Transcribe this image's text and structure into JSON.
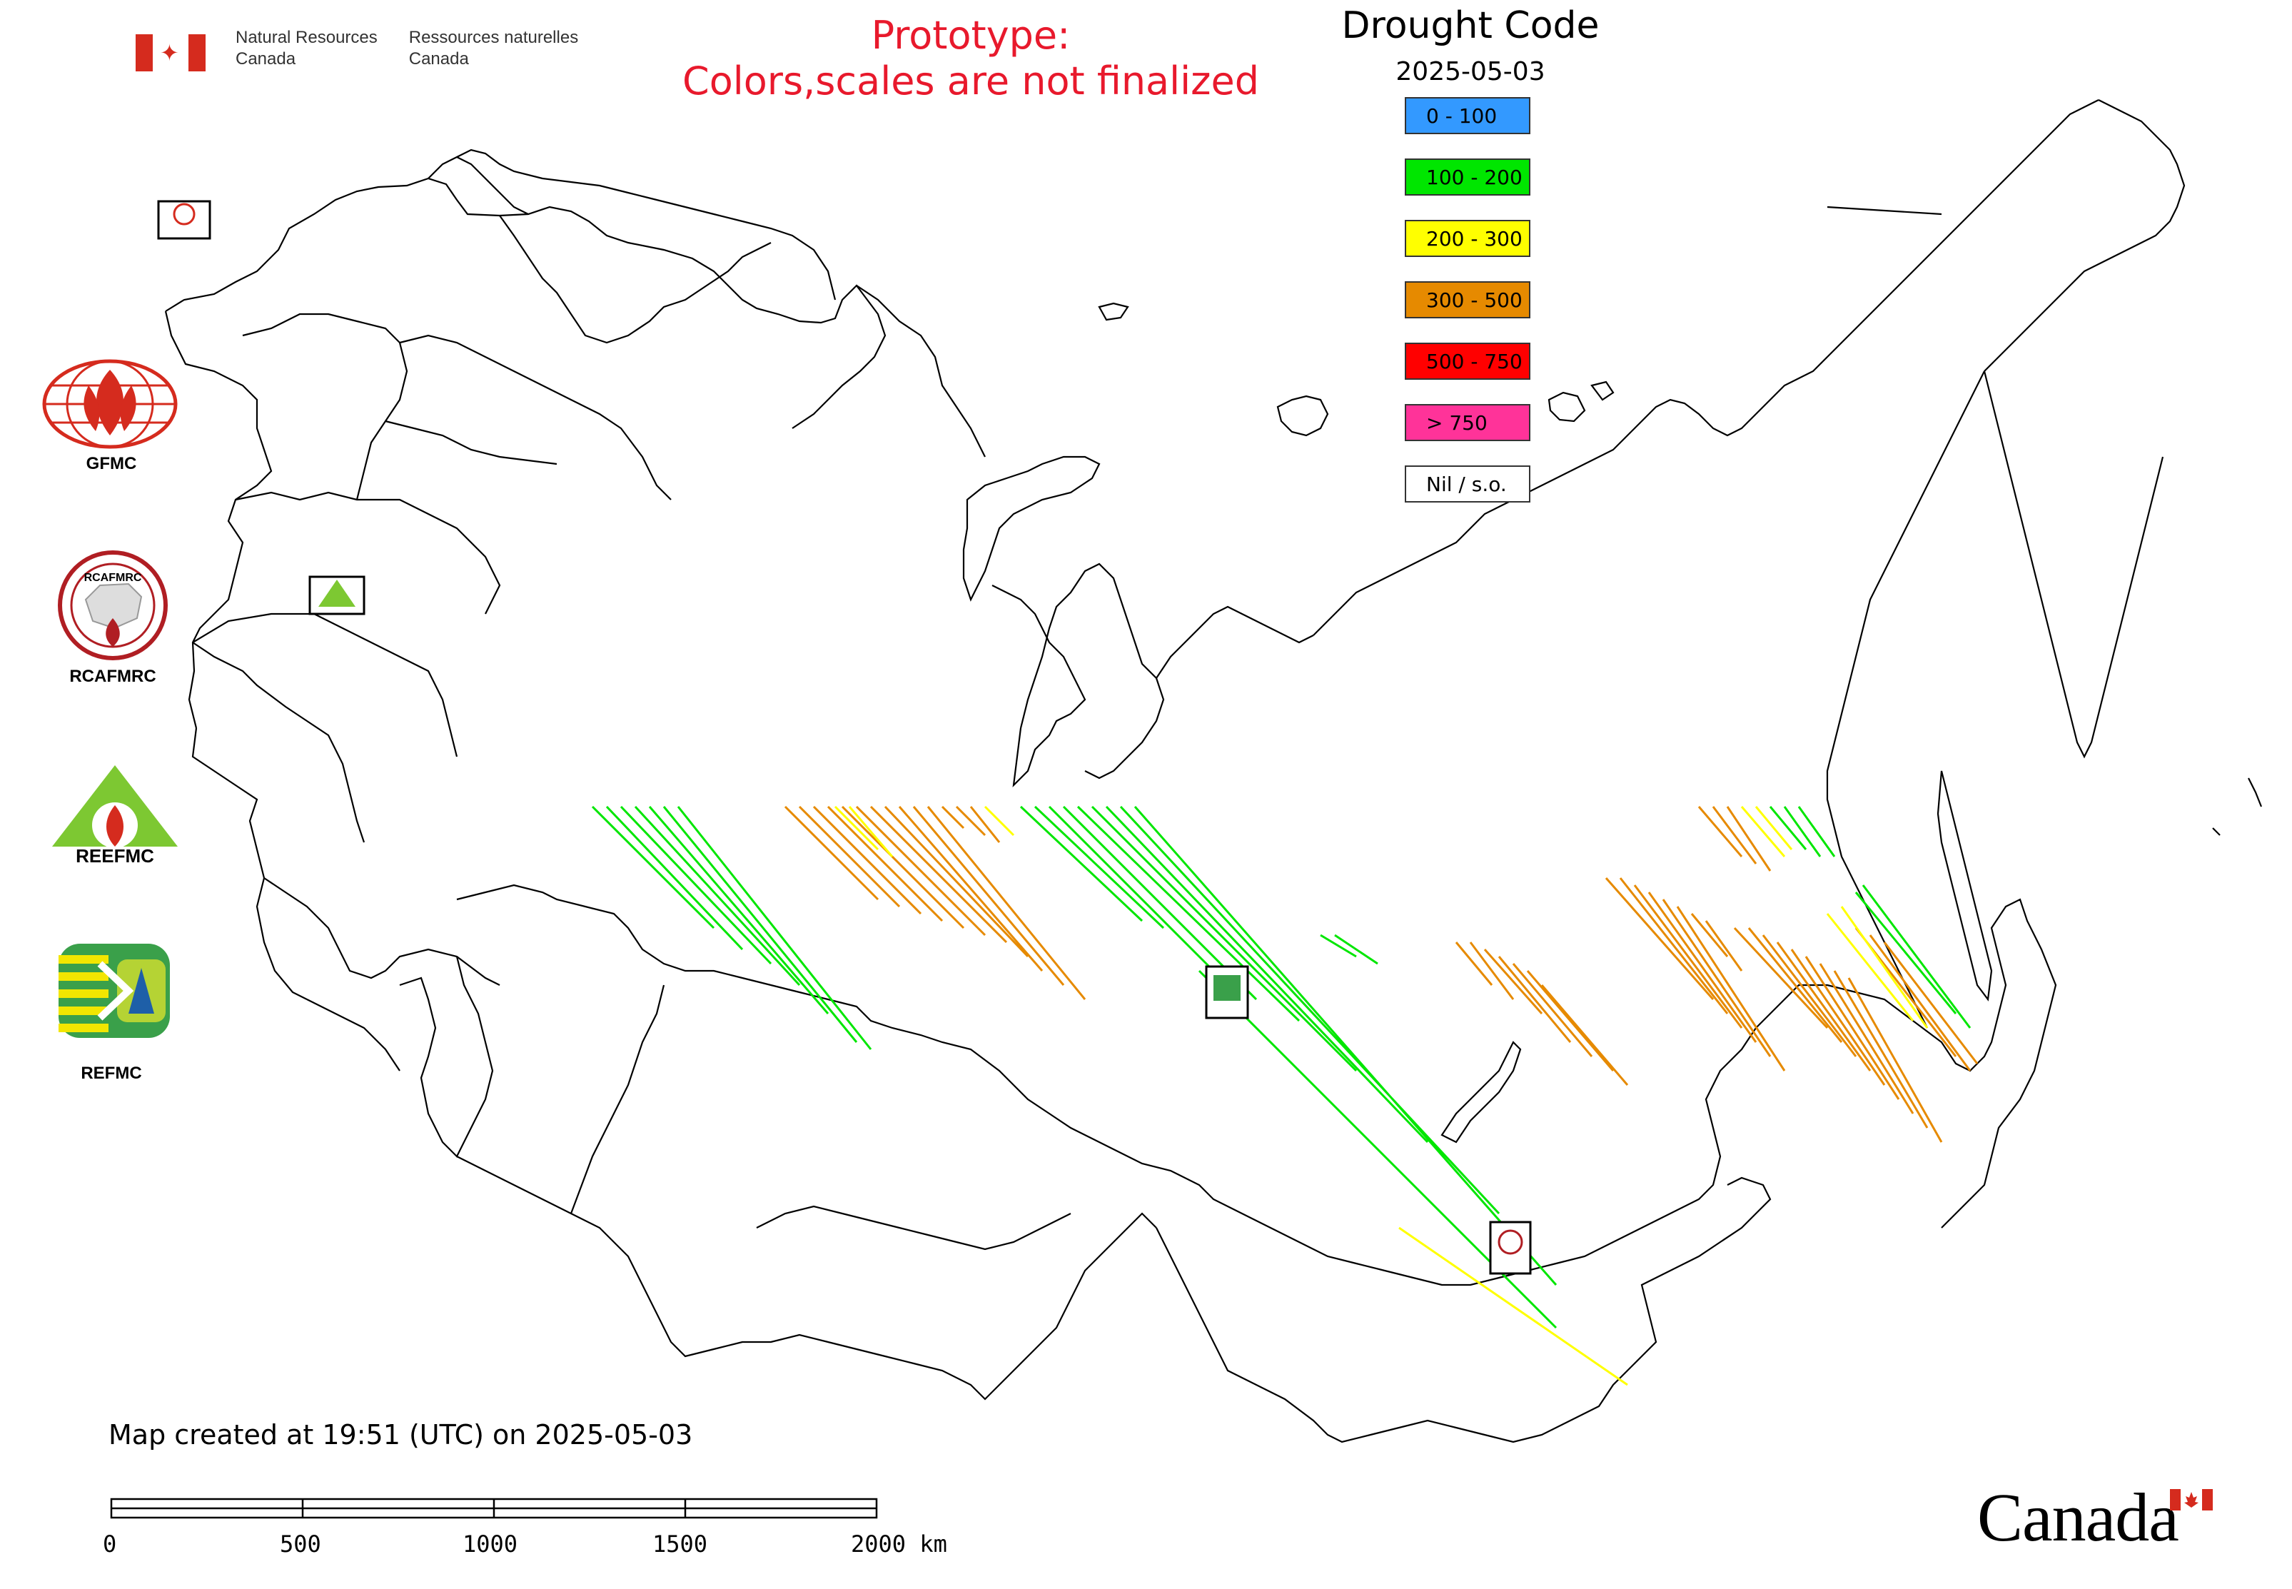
{
  "header": {
    "dept_en_line1": "Natural Resources",
    "dept_en_line2": "Canada",
    "dept_fr_line1": "Ressources naturelles",
    "dept_fr_line2": "Canada",
    "prototype_line1": "Prototype:",
    "prototype_line2": "Colors,scales are not finalized"
  },
  "legend": {
    "title": "Drought Code",
    "date": "2025-05-03",
    "classes": [
      {
        "label": "0 - 100",
        "color": "#3399ff"
      },
      {
        "label": "100 - 200",
        "color": "#00e600"
      },
      {
        "label": "200 - 300",
        "color": "#ffff00"
      },
      {
        "label": "300 - 500",
        "color": "#e68a00"
      },
      {
        "label": "500 - 750",
        "color": "#ff0000"
      },
      {
        "label": "> 750",
        "color": "#ff3399"
      },
      {
        "label": "Nil / s.o.",
        "color": "#ffffff"
      }
    ]
  },
  "logos": [
    {
      "name": "GFMC",
      "label": "GFMC"
    },
    {
      "name": "RCAFMRC",
      "label": "RCAFMRC"
    },
    {
      "name": "REEFMC",
      "label": ""
    },
    {
      "name": "REFMC",
      "label": "REFMC"
    }
  ],
  "logo_texts": {
    "rcafmrc_inner": "RCAFMRC",
    "reefmc_text": "REEFMC"
  },
  "footer": {
    "created": "Map created at 19:51 (UTC) on 2025-05-03",
    "scale_ticks": [
      "0",
      "500",
      "1000",
      "1500",
      "2000 km"
    ]
  },
  "wordmark": "Canada",
  "colors": {
    "flag_red": "#d52b1e",
    "proto_red": "#e8192c"
  }
}
